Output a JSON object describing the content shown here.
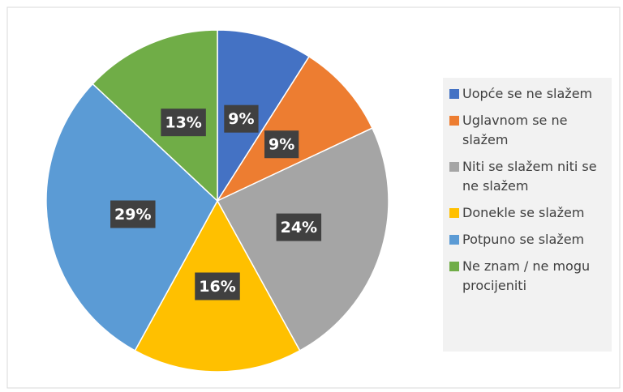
{
  "chart_data": {
    "type": "pie",
    "categories": [
      "Uopće se ne slažem",
      "Uglavnom se ne slažem",
      "Niti se slažem niti se ne slažem",
      "Donekle se slažem",
      "Potpuno se slažem",
      "Ne znam / ne mogu procijeniti"
    ],
    "values": [
      9,
      9,
      24,
      16,
      29,
      13
    ],
    "value_labels": [
      "9%",
      "9%",
      "24%",
      "16%",
      "29%",
      "13%"
    ],
    "colors": [
      "#4472c4",
      "#ed7d31",
      "#a5a5a5",
      "#ffc000",
      "#5b9bd5",
      "#70ad47"
    ],
    "legend": "right"
  }
}
